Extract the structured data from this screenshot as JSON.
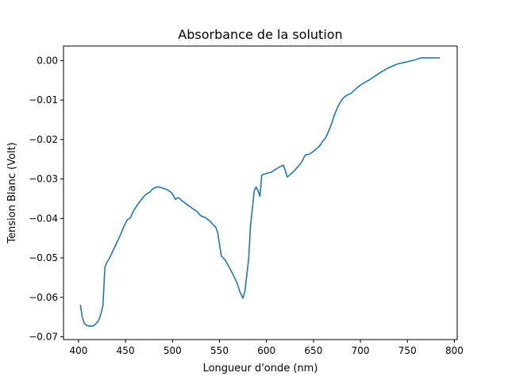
{
  "chart_data": {
    "type": "line",
    "title": "Absorbance de la solution",
    "xlabel": "Longueur d'onde (nm)",
    "ylabel": "Tension Blanc (Volt)",
    "xlim": [
      384,
      803
    ],
    "ylim": [
      -0.0707,
      0.0037
    ],
    "xticks": [
      400,
      450,
      500,
      550,
      600,
      650,
      700,
      750,
      800
    ],
    "yticks": [
      -0.07,
      -0.06,
      -0.05,
      -0.04,
      -0.03,
      -0.02,
      -0.01,
      0.0
    ],
    "xtick_labels": [
      "400",
      "450",
      "500",
      "550",
      "600",
      "650",
      "700",
      "750",
      "800"
    ],
    "ytick_labels": [
      "−0.07",
      "−0.06",
      "−0.05",
      "−0.04",
      "−0.03",
      "−0.02",
      "−0.01",
      "0.00"
    ],
    "grid": false,
    "legend": "none",
    "series": [
      {
        "color": "#1f77b4",
        "x": [
          402,
          404,
          406,
          408,
          410,
          412,
          414,
          416,
          418,
          420,
          422,
          424,
          426,
          428,
          430,
          433,
          436,
          440,
          444,
          448,
          452,
          455,
          458,
          462,
          466,
          470,
          473,
          476,
          479,
          482,
          485,
          488,
          491,
          494,
          497,
          499,
          501,
          503,
          506,
          510,
          514,
          518,
          522,
          526,
          530,
          535,
          540,
          544,
          546,
          548,
          552,
          556,
          560,
          564,
          567,
          569,
          572,
          575,
          577,
          579,
          581,
          583,
          585,
          587,
          589,
          591,
          593,
          595,
          600,
          605,
          610,
          615,
          618,
          620,
          622,
          625,
          630,
          635,
          638,
          640,
          642,
          645,
          650,
          655,
          658,
          660,
          663,
          666,
          669,
          672,
          675,
          678,
          681,
          684,
          687,
          690,
          695,
          700,
          710,
          720,
          730,
          740,
          750,
          755,
          760,
          763,
          765,
          768,
          770,
          772,
          775,
          778,
          781,
          784
        ],
        "y": [
          -0.062,
          -0.065,
          -0.0665,
          -0.067,
          -0.0672,
          -0.0673,
          -0.0673,
          -0.0672,
          -0.0668,
          -0.0663,
          -0.0655,
          -0.064,
          -0.062,
          -0.0525,
          -0.0512,
          -0.05,
          -0.0485,
          -0.0465,
          -0.0445,
          -0.0422,
          -0.0403,
          -0.0399,
          -0.0383,
          -0.0368,
          -0.0355,
          -0.0343,
          -0.0337,
          -0.0333,
          -0.0325,
          -0.0321,
          -0.032,
          -0.0322,
          -0.0324,
          -0.0327,
          -0.0331,
          -0.0335,
          -0.0342,
          -0.0352,
          -0.0347,
          -0.0355,
          -0.0362,
          -0.0369,
          -0.0376,
          -0.0382,
          -0.0393,
          -0.0398,
          -0.0407,
          -0.0418,
          -0.0422,
          -0.0435,
          -0.0495,
          -0.0505,
          -0.0522,
          -0.054,
          -0.0555,
          -0.0565,
          -0.0588,
          -0.0602,
          -0.0585,
          -0.0545,
          -0.0505,
          -0.042,
          -0.0375,
          -0.033,
          -0.032,
          -0.033,
          -0.0344,
          -0.029,
          -0.0286,
          -0.0283,
          -0.0275,
          -0.0268,
          -0.0265,
          -0.0278,
          -0.0295,
          -0.029,
          -0.0278,
          -0.0265,
          -0.0255,
          -0.0245,
          -0.0238,
          -0.0238,
          -0.023,
          -0.022,
          -0.0212,
          -0.0204,
          -0.0196,
          -0.018,
          -0.0162,
          -0.014,
          -0.0122,
          -0.0108,
          -0.0097,
          -0.009,
          -0.0086,
          -0.0083,
          -0.0072,
          -0.0062,
          -0.0048,
          -0.0032,
          -0.0018,
          -0.0008,
          -0.0003,
          0.0,
          0.0003,
          0.0006,
          0.0007,
          0.0007,
          0.0007,
          0.0007,
          0.0007,
          0.0007,
          0.0007,
          0.0007
        ]
      }
    ]
  }
}
